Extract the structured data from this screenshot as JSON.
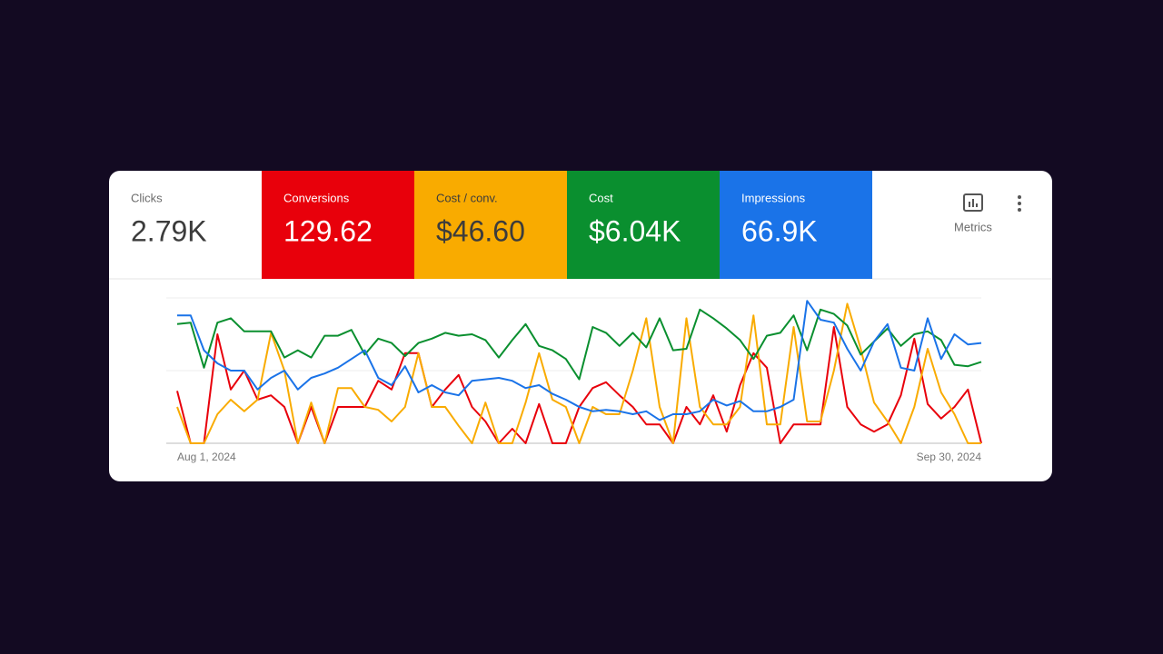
{
  "toolbar": {
    "metrics_button": "Metrics"
  },
  "clicks": {
    "label": "Clicks",
    "value": "2.79K"
  },
  "chart_data": {
    "type": "line",
    "categories": [
      "Aug 1, 2024",
      null,
      null,
      null,
      null,
      null,
      null,
      null,
      null,
      null,
      null,
      null,
      null,
      null,
      null,
      null,
      null,
      null,
      null,
      null,
      null,
      null,
      null,
      null,
      null,
      null,
      null,
      null,
      null,
      null,
      null,
      null,
      null,
      null,
      null,
      null,
      null,
      null,
      null,
      null,
      null,
      null,
      null,
      null,
      null,
      null,
      null,
      null,
      null,
      null,
      null,
      null,
      null,
      null,
      null,
      null,
      null,
      null,
      null,
      null,
      "Sep 30, 2024"
    ],
    "ylim": [
      0,
      100
    ],
    "yticks": [
      0,
      50,
      100
    ],
    "grid": true,
    "series": [
      {
        "name": "Conversions",
        "summary": "129.62",
        "color": "#e8000b",
        "text_color": "#ffffff",
        "values": [
          36,
          0,
          0,
          75,
          37,
          50,
          30,
          33,
          25,
          0,
          25,
          0,
          25,
          25,
          25,
          43,
          37,
          62,
          62,
          25,
          37,
          47,
          25,
          15,
          0,
          10,
          0,
          27,
          0,
          0,
          25,
          38,
          42,
          33,
          25,
          13,
          13,
          0,
          25,
          13,
          33,
          8,
          40,
          62,
          52,
          0,
          13,
          13,
          13,
          80,
          25,
          13,
          8,
          13,
          33,
          72,
          27,
          17,
          25,
          37,
          0
        ]
      },
      {
        "name": "Cost / conv.",
        "summary": "$46.60",
        "color": "#f9ab00",
        "text_color": "#3c3c3c",
        "values": [
          25,
          0,
          0,
          20,
          30,
          22,
          30,
          76,
          50,
          0,
          28,
          0,
          38,
          38,
          25,
          23,
          15,
          25,
          62,
          25,
          25,
          12,
          0,
          28,
          0,
          0,
          28,
          62,
          30,
          25,
          0,
          25,
          20,
          20,
          50,
          86,
          25,
          0,
          86,
          25,
          13,
          13,
          25,
          88,
          13,
          13,
          80,
          15,
          15,
          50,
          96,
          65,
          28,
          15,
          0,
          25,
          65,
          35,
          20,
          0,
          0
        ]
      },
      {
        "name": "Cost",
        "summary": "$6.04K",
        "color": "#0a8f2f",
        "text_color": "#ffffff",
        "values": [
          82,
          83,
          52,
          83,
          86,
          77,
          77,
          77,
          59,
          64,
          59,
          74,
          74,
          78,
          61,
          72,
          69,
          60,
          69,
          72,
          76,
          74,
          75,
          71,
          59,
          71,
          82,
          67,
          64,
          58,
          44,
          80,
          76,
          67,
          76,
          66,
          86,
          64,
          65,
          92,
          86,
          79,
          71,
          58,
          74,
          76,
          88,
          64,
          92,
          89,
          81,
          61,
          70,
          79,
          67,
          75,
          77,
          71,
          54,
          53,
          56
        ]
      },
      {
        "name": "Impressions",
        "summary": "66.9K",
        "color": "#1a73e8",
        "text_color": "#ffffff",
        "values": [
          88,
          88,
          64,
          55,
          50,
          50,
          37,
          45,
          50,
          37,
          45,
          48,
          52,
          58,
          64,
          45,
          40,
          53,
          35,
          40,
          35,
          33,
          43,
          44,
          45,
          43,
          38,
          40,
          34,
          30,
          25,
          22,
          23,
          22,
          20,
          22,
          16,
          20,
          20,
          22,
          30,
          26,
          29,
          22,
          22,
          25,
          30,
          98,
          85,
          83,
          65,
          50,
          70,
          82,
          52,
          50,
          86,
          58,
          75,
          68,
          69
        ]
      }
    ]
  }
}
